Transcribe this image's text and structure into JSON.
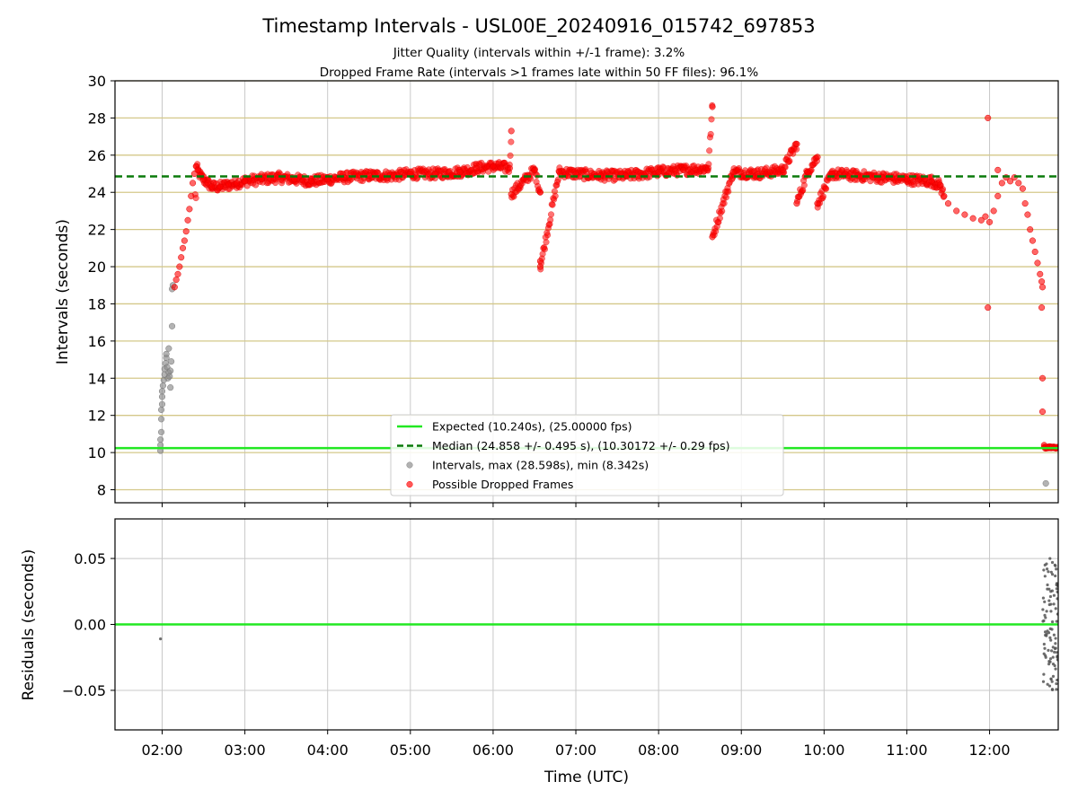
{
  "chart_data": {
    "type": "scatter",
    "title": "Timestamp Intervals - USL00E_20240916_015742_697853",
    "subtitle_lines": [
      "Jitter Quality (intervals within +/-1 frame): 3.2%",
      "Dropped Frame Rate (intervals >1 frames late within 50 FF files): 96.1%"
    ],
    "xlabel": "Time (UTC)",
    "x_tick_labels": [
      "02:00",
      "03:00",
      "04:00",
      "05:00",
      "06:00",
      "07:00",
      "08:00",
      "09:00",
      "10:00",
      "11:00",
      "12:00"
    ],
    "x_ticks_hours": [
      2,
      3,
      4,
      5,
      6,
      7,
      8,
      9,
      10,
      11,
      12
    ],
    "xlim_hours": [
      1.43,
      12.83
    ],
    "top_panel": {
      "ylabel": "Intervals (seconds)",
      "ylim": [
        7.3,
        30
      ],
      "y_ticks": [
        8,
        10,
        12,
        14,
        16,
        18,
        20,
        22,
        24,
        26,
        28,
        30
      ],
      "expected_line": 10.24,
      "median_line": 24.858,
      "legend": [
        {
          "label": "Expected (10.240s), (25.00000 fps)",
          "style": "line",
          "color": "#22e822"
        },
        {
          "label": "Median (24.858 +/- 0.495 s), (10.30172 +/- 0.29 fps)",
          "style": "dashed",
          "color": "#0a7a0a"
        },
        {
          "label": "Intervals, max (28.598s), min (8.342s)",
          "style": "marker",
          "color": "#888888"
        },
        {
          "label": "Possible Dropped Frames",
          "style": "marker",
          "color": "#ff0000"
        }
      ],
      "gray_points": [
        [
          1.98,
          10.1
        ],
        [
          1.98,
          10.4
        ],
        [
          1.98,
          10.7
        ],
        [
          1.99,
          11.1
        ],
        [
          1.99,
          11.8
        ],
        [
          1.99,
          12.3
        ],
        [
          2.0,
          12.6
        ],
        [
          2.0,
          13.0
        ],
        [
          2.0,
          13.3
        ],
        [
          2.01,
          13.6
        ],
        [
          2.02,
          13.9
        ],
        [
          2.03,
          14.2
        ],
        [
          2.03,
          14.5
        ],
        [
          2.04,
          14.8
        ],
        [
          2.05,
          15.1
        ],
        [
          2.05,
          15.3
        ],
        [
          2.06,
          14.6
        ],
        [
          2.07,
          14.0
        ],
        [
          2.08,
          14.3
        ],
        [
          2.08,
          15.6
        ],
        [
          2.09,
          14.1
        ],
        [
          2.1,
          13.5
        ],
        [
          2.1,
          14.4
        ],
        [
          2.11,
          14.9
        ],
        [
          2.12,
          16.8
        ],
        [
          2.12,
          18.8
        ],
        [
          2.13,
          19.0
        ],
        [
          12.68,
          8.342
        ]
      ],
      "red_points": [
        [
          2.15,
          18.9
        ],
        [
          2.17,
          19.3
        ],
        [
          2.19,
          19.6
        ],
        [
          2.21,
          20.0
        ],
        [
          2.23,
          20.5
        ],
        [
          2.25,
          21.0
        ],
        [
          2.27,
          21.4
        ],
        [
          2.29,
          21.9
        ],
        [
          2.31,
          22.5
        ],
        [
          2.33,
          23.1
        ],
        [
          2.35,
          23.8
        ],
        [
          2.37,
          24.5
        ],
        [
          2.39,
          25.0
        ],
        [
          2.41,
          25.4
        ],
        [
          2.43,
          25.2
        ],
        [
          2.46,
          24.9
        ],
        [
          2.5,
          24.7
        ],
        [
          2.55,
          24.5
        ],
        [
          2.6,
          24.3
        ],
        [
          2.7,
          24.3
        ],
        [
          2.8,
          24.4
        ],
        [
          2.9,
          24.5
        ],
        [
          3.0,
          24.6
        ],
        [
          3.2,
          24.7
        ],
        [
          3.4,
          24.8
        ],
        [
          3.6,
          24.7
        ],
        [
          3.8,
          24.6
        ],
        [
          4.0,
          24.7
        ],
        [
          4.2,
          24.8
        ],
        [
          4.5,
          24.9
        ],
        [
          4.8,
          24.9
        ],
        [
          5.0,
          25.0
        ],
        [
          5.3,
          25.0
        ],
        [
          5.6,
          25.1
        ],
        [
          5.8,
          25.3
        ],
        [
          6.0,
          25.4
        ],
        [
          6.2,
          25.3
        ],
        [
          6.5,
          25.2
        ],
        [
          6.8,
          25.1
        ],
        [
          7.0,
          25.0
        ],
        [
          7.3,
          24.9
        ],
        [
          7.6,
          24.9
        ],
        [
          8.0,
          25.1
        ],
        [
          8.3,
          25.2
        ],
        [
          8.6,
          25.3
        ],
        [
          8.9,
          25.1
        ],
        [
          9.2,
          25.0
        ],
        [
          9.5,
          25.2
        ],
        [
          9.8,
          25.1
        ],
        [
          10.1,
          25.0
        ],
        [
          10.4,
          24.9
        ],
        [
          10.7,
          24.8
        ],
        [
          11.0,
          24.7
        ],
        [
          11.3,
          24.6
        ],
        [
          11.4,
          24.4
        ],
        [
          11.45,
          23.8
        ],
        [
          11.5,
          23.4
        ],
        [
          11.6,
          23.0
        ],
        [
          11.7,
          22.8
        ],
        [
          11.8,
          22.6
        ],
        [
          11.9,
          22.5
        ],
        [
          11.95,
          22.7
        ],
        [
          12.0,
          22.4
        ],
        [
          12.05,
          23.0
        ],
        [
          12.1,
          23.8
        ],
        [
          12.15,
          24.5
        ],
        [
          12.2,
          24.8
        ],
        [
          12.25,
          24.6
        ],
        [
          12.3,
          24.8
        ],
        [
          12.35,
          24.5
        ],
        [
          12.4,
          24.2
        ],
        [
          12.43,
          23.4
        ],
        [
          12.46,
          22.8
        ],
        [
          12.49,
          22.0
        ],
        [
          12.52,
          21.4
        ],
        [
          12.55,
          20.8
        ],
        [
          12.58,
          20.2
        ],
        [
          12.61,
          19.6
        ],
        [
          12.63,
          19.2
        ],
        [
          12.64,
          18.9
        ],
        [
          6.22,
          27.3
        ],
        [
          6.22,
          23.9
        ],
        [
          6.57,
          24.0
        ],
        [
          6.57,
          20.3
        ],
        [
          6.57,
          20.0
        ],
        [
          8.65,
          28.6
        ],
        [
          8.65,
          21.6
        ],
        [
          9.67,
          26.6
        ],
        [
          9.67,
          23.4
        ],
        [
          9.92,
          25.9
        ],
        [
          9.92,
          23.4
        ],
        [
          11.98,
          28.0
        ],
        [
          11.98,
          17.8
        ],
        [
          12.1,
          25.2
        ],
        [
          12.63,
          17.8
        ],
        [
          12.64,
          14.0
        ],
        [
          12.64,
          12.2
        ],
        [
          12.66,
          10.4
        ],
        [
          12.68,
          10.3
        ],
        [
          12.7,
          10.25
        ],
        [
          12.72,
          10.3
        ],
        [
          12.74,
          10.25
        ],
        [
          12.76,
          10.3
        ],
        [
          12.78,
          10.25
        ],
        [
          12.8,
          10.25
        ]
      ],
      "band_start_hours": 2.4,
      "band_end_hours": 11.45
    },
    "bottom_panel": {
      "ylabel": "Residuals (seconds)",
      "ylim": [
        -0.08,
        0.08
      ],
      "y_ticks": [
        -0.05,
        0.0,
        0.05
      ],
      "y_tick_labels": [
        "−0.05",
        "0.00",
        "0.05"
      ],
      "zero_line": 0.0,
      "points": [
        [
          1.98,
          -0.011
        ],
        [
          12.65,
          0.02
        ],
        [
          12.66,
          -0.015
        ],
        [
          12.67,
          0.045
        ],
        [
          12.68,
          -0.025
        ],
        [
          12.69,
          0.01
        ],
        [
          12.7,
          0.03
        ],
        [
          12.7,
          -0.005
        ],
        [
          12.71,
          0.04
        ],
        [
          12.72,
          -0.028
        ],
        [
          12.72,
          0.018
        ],
        [
          12.73,
          0.05
        ],
        [
          12.74,
          -0.012
        ],
        [
          12.74,
          0.025
        ],
        [
          12.75,
          -0.02
        ],
        [
          12.76,
          0.038
        ],
        [
          12.76,
          0.002
        ],
        [
          12.77,
          -0.03
        ],
        [
          12.78,
          0.022
        ],
        [
          12.78,
          -0.008
        ],
        [
          12.79,
          0.045
        ],
        [
          12.8,
          -0.018
        ],
        [
          12.8,
          0.012
        ],
        [
          12.81,
          0.03
        ],
        [
          12.82,
          -0.024
        ]
      ]
    }
  }
}
